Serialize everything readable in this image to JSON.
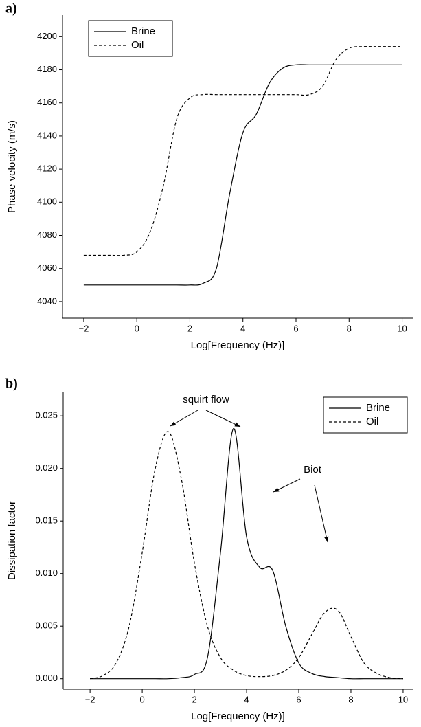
{
  "chart_data": [
    {
      "type": "line",
      "panel_label": "a)",
      "xlabel": "Log[Frequency (Hz)]",
      "ylabel": "Phase velocity (m/s)",
      "x": [
        -2,
        -1.5,
        -1,
        -0.5,
        0,
        0.5,
        1,
        1.5,
        2,
        2.5,
        3,
        3.5,
        4,
        4.5,
        5,
        5.5,
        6,
        6.5,
        7,
        7.5,
        8,
        8.5,
        9,
        9.5,
        10
      ],
      "series": [
        {
          "name": "Brine",
          "color": "#000000",
          "style": "solid",
          "values": [
            4050,
            4050,
            4050,
            4050,
            4050,
            4050,
            4050,
            4050,
            4050,
            4051,
            4060,
            4105,
            4142,
            4153,
            4172,
            4181,
            4183,
            4183,
            4183,
            4183,
            4183,
            4183,
            4183,
            4183,
            4183
          ]
        },
        {
          "name": "Oil",
          "color": "#000000",
          "style": "dashed",
          "values": [
            4068,
            4068,
            4068,
            4068,
            4070,
            4082,
            4110,
            4150,
            4163,
            4165,
            4165,
            4165,
            4165,
            4165,
            4165,
            4165,
            4165,
            4165,
            4170,
            4186,
            4193,
            4194,
            4194,
            4194,
            4194
          ]
        }
      ],
      "xlim": [
        -2.8,
        10.4
      ],
      "xticks": [
        {
          "value": -2,
          "label": "−2"
        },
        0,
        2,
        4,
        6,
        8,
        10
      ],
      "ylim": [
        4030,
        4213
      ],
      "yticks": [
        4040,
        4060,
        4080,
        4100,
        4120,
        4140,
        4160,
        4180,
        4200
      ],
      "legend": "upper left"
    },
    {
      "type": "line",
      "panel_label": "b)",
      "xlabel": "Log[Frequency (Hz)]",
      "ylabel": "Dissipation factor",
      "x": [
        -2,
        -1.5,
        -1,
        -0.5,
        0,
        0.5,
        1,
        1.5,
        2,
        2.5,
        3,
        3.5,
        4,
        4.5,
        5,
        5.5,
        6,
        6.5,
        7,
        7.5,
        8,
        8.5,
        9,
        9.5,
        10
      ],
      "series": [
        {
          "name": "Brine",
          "color": "#000000",
          "style": "solid",
          "values": [
            0,
            0,
            0,
            0,
            0,
            0,
            0,
            0.0001,
            0.0004,
            0.002,
            0.012,
            0.0238,
            0.0135,
            0.0106,
            0.0103,
            0.005,
            0.0015,
            0.0005,
            0.0002,
            0.0001,
            0,
            0,
            0,
            0,
            0
          ]
        },
        {
          "name": "Oil",
          "color": "#000000",
          "style": "dashed",
          "values": [
            0,
            0.0003,
            0.0015,
            0.005,
            0.012,
            0.02,
            0.0235,
            0.019,
            0.011,
            0.005,
            0.002,
            0.0008,
            0.0003,
            0.0002,
            0.0003,
            0.0008,
            0.002,
            0.0042,
            0.0063,
            0.0065,
            0.004,
            0.0015,
            0.0005,
            0.0001,
            0
          ]
        }
      ],
      "xlim": [
        -3.03,
        10.37
      ],
      "xticks": [
        {
          "value": -2,
          "label": "−2"
        },
        0,
        2,
        4,
        6,
        8,
        10
      ],
      "ylim": [
        -0.001,
        0.0273
      ],
      "yticks": [
        {
          "value": 0,
          "label": "0.000"
        },
        0.005,
        {
          "value": 0.01,
          "label": "0.010"
        },
        0.015,
        {
          "value": 0.02,
          "label": "0.020"
        },
        0.025
      ],
      "legend": "upper right",
      "annotations": [
        {
          "text": "squirt flow"
        },
        {
          "text": "Biot"
        }
      ]
    }
  ]
}
